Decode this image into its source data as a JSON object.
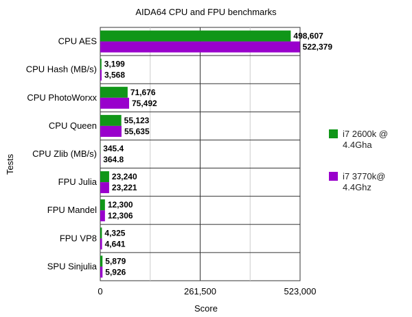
{
  "chart_data": {
    "type": "bar",
    "orientation": "horizontal",
    "title": "AIDA64 CPU and FPU benchmarks",
    "xlabel": "Score",
    "ylabel": "Tests",
    "xlim": [
      0,
      523000
    ],
    "x_ticks": [
      "0",
      "261,500",
      "523,000"
    ],
    "grid": true,
    "legend_position": "right",
    "categories": [
      "CPU AES",
      "CPU Hash (MB/s)",
      "CPU PhotoWorxx",
      "CPU Queen",
      "CPU Zlib (MB/s)",
      "FPU Julia",
      "FPU Mandel",
      "FPU VP8",
      "SPU Sinjulia"
    ],
    "series": [
      {
        "name": "i7 2600k @ 4.4Gha",
        "color": "#109618",
        "values": [
          498607,
          3199,
          71676,
          55123,
          345.4,
          23240,
          12300,
          4325,
          5879
        ],
        "labels": [
          "498,607",
          "3,199",
          "71,676",
          "55,123",
          "345.4",
          "23,240",
          "12,300",
          "4,325",
          "5,879"
        ]
      },
      {
        "name": "i7 3770k@ 4.4Ghz",
        "color": "#9900cc",
        "values": [
          522379,
          3568,
          75492,
          55635,
          364.8,
          23221,
          12306,
          4641,
          5926
        ],
        "labels": [
          "522,379",
          "3,568",
          "75,492",
          "55,635",
          "364.8",
          "23,221",
          "12,306",
          "4,641",
          "5,926"
        ]
      }
    ]
  }
}
